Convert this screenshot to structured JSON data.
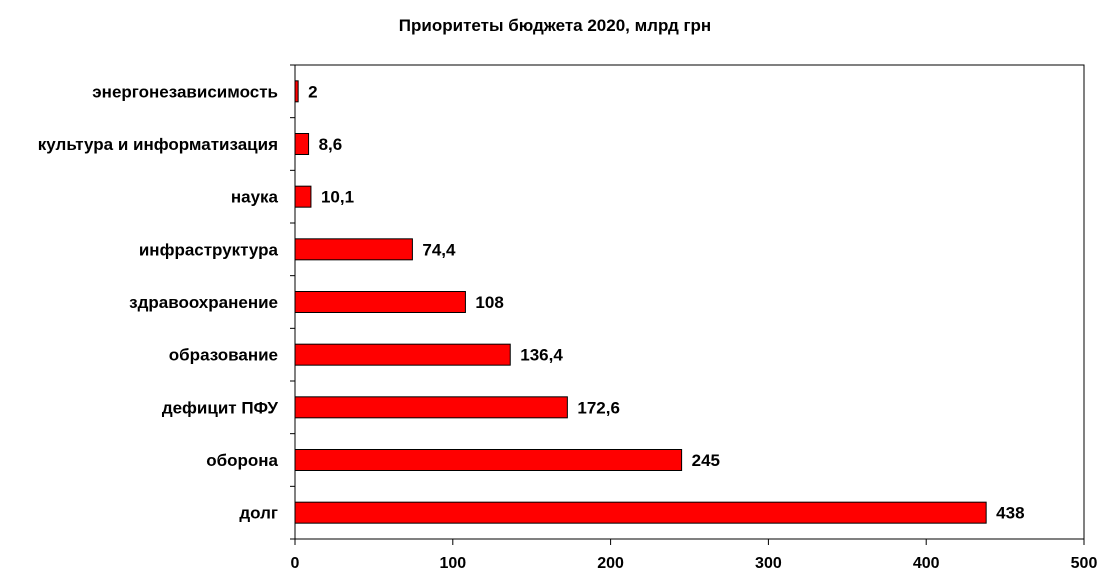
{
  "chart_data": {
    "type": "bar",
    "orientation": "horizontal",
    "title": "Приоритеты бюджета 2020, млрд грн",
    "categories": [
      "энергонезависимость",
      "культура и информатизация",
      "наука",
      "инфраструктура",
      "здравоохранение",
      "образование",
      "дефицит ПФУ",
      "оборона",
      "долг"
    ],
    "values": [
      2,
      8.6,
      10.1,
      74.4,
      108,
      136.4,
      172.6,
      245,
      438
    ],
    "data_labels": [
      "2",
      "8,6",
      "10,1",
      "74,4",
      "108",
      "136,4",
      "172,6",
      "245",
      "438"
    ],
    "xlim": [
      0,
      500
    ],
    "x_ticks": [
      0,
      100,
      200,
      300,
      400,
      500
    ],
    "bar_color": "#ff0000",
    "grid": false,
    "legend": "none"
  }
}
